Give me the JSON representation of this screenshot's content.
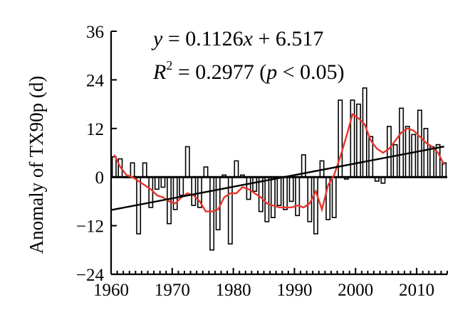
{
  "chart_data": {
    "type": "bar",
    "ylabel": "Anomaly of TX90p (d)",
    "xlabel": "",
    "xlim": [
      1960,
      2015
    ],
    "ylim": [
      -24,
      36
    ],
    "x_ticks": [
      1960,
      1970,
      1980,
      1990,
      2000,
      2010
    ],
    "y_ticks": [
      -24,
      -12,
      0,
      12,
      24,
      36
    ],
    "y_tick_labels": [
      "−24",
      "−12",
      "0",
      "12",
      "24",
      "36"
    ],
    "equation": {
      "y_var": "y",
      "x_var": "x",
      "equals": " = 0.1126",
      "rest": " + 6.517"
    },
    "r2": {
      "r": "R",
      "sup": "2",
      "value": " = 0.2977 (",
      "p": "p",
      "p_rest": " < 0.05)"
    },
    "years": [
      1960,
      1961,
      1962,
      1963,
      1964,
      1965,
      1966,
      1967,
      1968,
      1969,
      1970,
      1971,
      1972,
      1973,
      1974,
      1975,
      1976,
      1977,
      1978,
      1979,
      1980,
      1981,
      1982,
      1983,
      1984,
      1985,
      1986,
      1987,
      1988,
      1989,
      1990,
      1991,
      1992,
      1993,
      1994,
      1995,
      1996,
      1997,
      1998,
      1999,
      2000,
      2001,
      2002,
      2003,
      2004,
      2005,
      2006,
      2007,
      2008,
      2009,
      2010,
      2011,
      2012,
      2013,
      2014
    ],
    "values": [
      5,
      4.5,
      0,
      3.5,
      -14,
      3.5,
      -7.5,
      -3,
      -2.5,
      -11.5,
      -8,
      -4.5,
      7.5,
      -7,
      -7.5,
      2.5,
      -18,
      -13,
      0.5,
      -16.5,
      4,
      0.5,
      -5.5,
      -3.5,
      -8.5,
      -11,
      -10,
      -7,
      -8,
      -6,
      -9.5,
      5.5,
      -11,
      -14,
      4,
      -10.5,
      -10,
      19,
      -0.5,
      19,
      18,
      22,
      10,
      -1,
      -1.5,
      12.5,
      8,
      17,
      12.5,
      10.5,
      16.5,
      12,
      7.5,
      8,
      3.5
    ],
    "smoothed": [
      5.5,
      2.5,
      0.5,
      0,
      -1,
      -2,
      -3,
      -4.5,
      -5,
      -6,
      -6.5,
      -5,
      -4,
      -4.5,
      -6,
      -8.5,
      -8.5,
      -8,
      -5,
      -4,
      -4,
      -2.5,
      -3,
      -4,
      -5,
      -6.5,
      -7,
      -7.5,
      -7.5,
      -7.5,
      -7,
      -7.5,
      -6.5,
      -3.5,
      -8,
      -2,
      0.5,
      5,
      10,
      15.5,
      14.5,
      13,
      9,
      7,
      6,
      7,
      9,
      11,
      12,
      11.5,
      10,
      8.5,
      7.5,
      6,
      3
    ],
    "regression": {
      "slope": 0.1126,
      "intercept": 6.517,
      "x_start": 1960,
      "x_end": 2014,
      "center_year": 1987
    }
  }
}
